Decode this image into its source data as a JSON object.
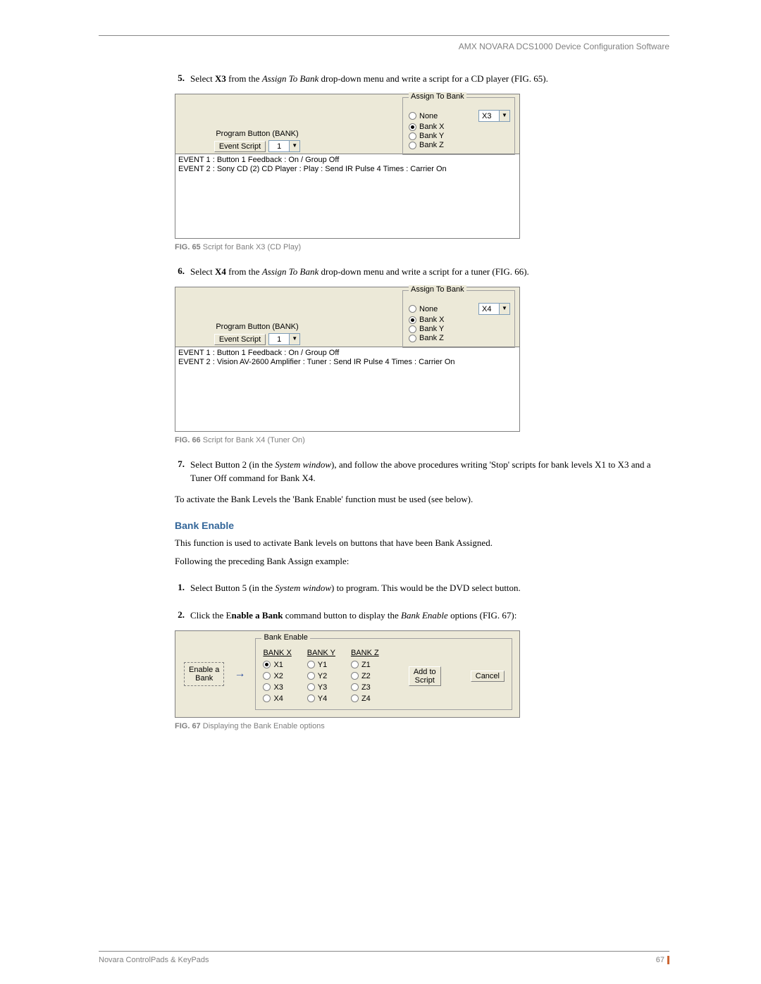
{
  "header": {
    "right": "AMX NOVARA DCS1000 Device Configuration Software"
  },
  "step5": {
    "num": "5.",
    "pre": "Select ",
    "bold1": "X3",
    "mid": " from the ",
    "ital": "Assign To Bank",
    "post": " drop-down menu and write a script for a CD player (FIG. 65)."
  },
  "fig65": {
    "progLabel": "Program Button (BANK)",
    "eventScriptLabel": "Event Script",
    "eventScriptVal": "1",
    "groupTitle": "Assign To Bank",
    "dropdownVal": "X3",
    "radios": [
      {
        "label": "None",
        "selected": false
      },
      {
        "label": "Bank X",
        "selected": true
      },
      {
        "label": "Bank Y",
        "selected": false
      },
      {
        "label": "Bank Z",
        "selected": false
      }
    ],
    "events": [
      "EVENT 1 : Button 1 Feedback : On / Group Off",
      "EVENT 2 : Sony CD (2)   CD Player :  Play : Send IR Pulse 4 Times : Carrier On"
    ],
    "caption_b": "FIG. 65",
    "caption_t": "   Script for Bank X3 (CD Play)"
  },
  "step6": {
    "num": "6.",
    "pre": "Select ",
    "bold1": "X4",
    "mid": " from the ",
    "ital": "Assign To Bank",
    "post": " drop-down menu and write a script for a tuner (FIG. 66)."
  },
  "fig66": {
    "progLabel": "Program Button (BANK)",
    "eventScriptLabel": "Event Script",
    "eventScriptVal": "1",
    "groupTitle": "Assign To Bank",
    "dropdownVal": "X4",
    "radios": [
      {
        "label": "None",
        "selected": false
      },
      {
        "label": "Bank X",
        "selected": true
      },
      {
        "label": "Bank Y",
        "selected": false
      },
      {
        "label": "Bank Z",
        "selected": false
      }
    ],
    "events": [
      "EVENT 1 : Button 1 Feedback : On / Group Off",
      "EVENT 2 : Vision AV-2600   Amplifier :  Tuner : Send IR Pulse 4 Times : Carrier On"
    ],
    "caption_b": "FIG. 66",
    "caption_t": "   Script for Bank X4 (Tuner On)"
  },
  "step7": {
    "num": "7.",
    "pre": "Select Button 2 (in the ",
    "ital": "System window",
    "post1": "), and follow the above procedures writing 'Stop' scripts for bank levels X1 to X3 and a Tuner Off command for Bank X4."
  },
  "para_activate": "To activate the Bank Levels the 'Bank Enable' function must be used (see below).",
  "heading": "Bank Enable",
  "para_desc": "This function is used to activate Bank levels on buttons that have been Bank Assigned.",
  "para_follow": "Following the preceding Bank Assign example:",
  "ol1": {
    "num": "1.",
    "pre": "Select Button 5 (in the ",
    "ital": "System window",
    "post": ") to program. This would be the DVD select button."
  },
  "ol2": {
    "num": "2.",
    "pre": "Click the E",
    "bold": "nable a Bank",
    "mid": " command button to display the ",
    "ital": "Bank Enable",
    "post": " options (FIG. 67):"
  },
  "fig67": {
    "enableBtn_l1": "Enable a",
    "enableBtn_l2": "Bank",
    "groupTitle": "Bank Enable",
    "cols": [
      {
        "hdr": "BANK X",
        "opts": [
          "X1",
          "X2",
          "X3",
          "X4"
        ],
        "sel": 0
      },
      {
        "hdr": "BANK Y",
        "opts": [
          "Y1",
          "Y2",
          "Y3",
          "Y4"
        ],
        "sel": -1
      },
      {
        "hdr": "BANK Z",
        "opts": [
          "Z1",
          "Z2",
          "Z3",
          "Z4"
        ],
        "sel": -1
      }
    ],
    "addBtn_l1": "Add to",
    "addBtn_l2": "Script",
    "cancelBtn": "Cancel",
    "caption_b": "FIG. 67",
    "caption_t": "   Displaying the Bank Enable options"
  },
  "footer": {
    "left": "Novara ControlPads   & KeyPads",
    "page": "67"
  }
}
